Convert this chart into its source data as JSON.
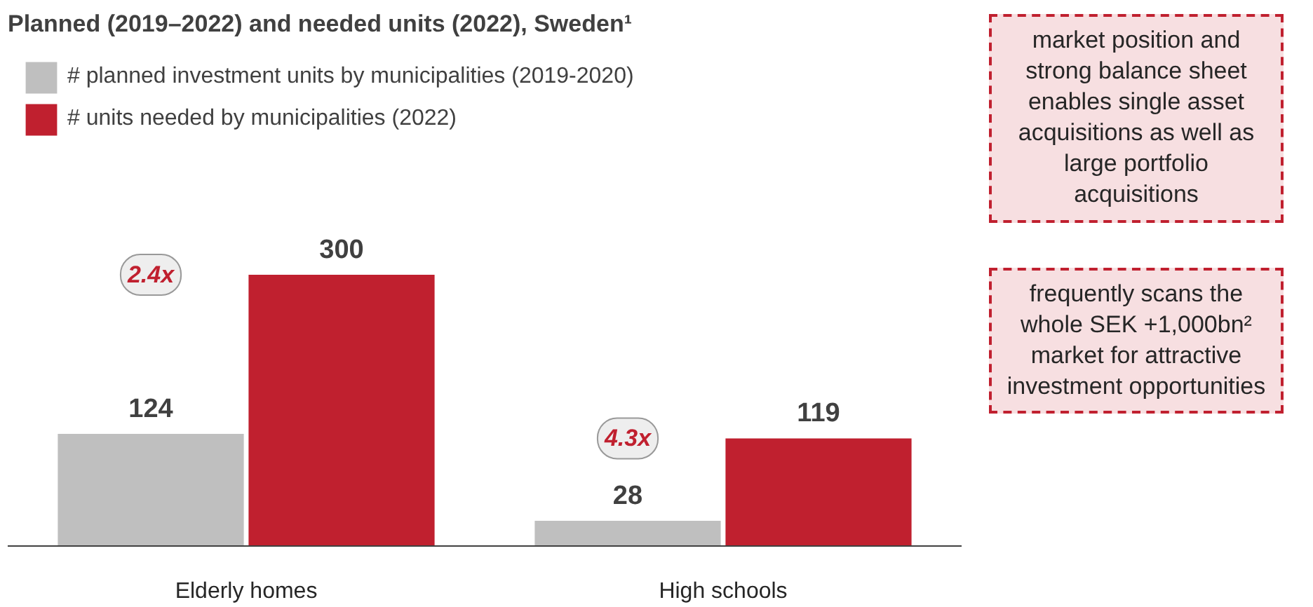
{
  "chart_data": {
    "type": "bar",
    "title": "Planned (2019–2022) and needed units (2022), Sweden¹",
    "categories": [
      "Elderly homes",
      "High schools"
    ],
    "series": [
      {
        "name": "# planned investment units by municipalities (2019-2020)",
        "color": "#bfbfbf",
        "values": [
          124,
          28
        ]
      },
      {
        "name": "# units needed by municipalities (2022)",
        "color": "#c0202f",
        "values": [
          300,
          119
        ]
      }
    ],
    "data_labels": true,
    "legend": "top left",
    "grid": false,
    "annotations": [
      "2.4x",
      "4.3x",
      "market position and strong balance sheet enables single asset acquisitions as well as large portfolio acquisitions",
      "frequently scans the whole SEK +1,000bn² market for attractive investment opportunities"
    ]
  }
}
